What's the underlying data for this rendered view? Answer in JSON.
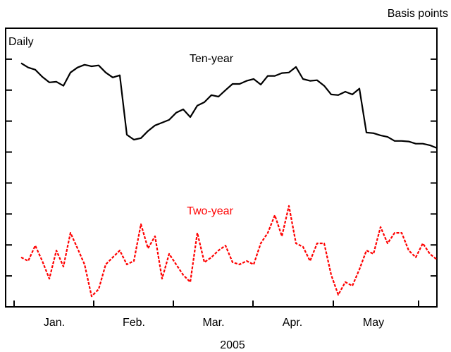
{
  "chart_data": {
    "type": "line",
    "y_unit_label": "Basis points",
    "annotation": "Daily",
    "x_labels": [
      "Jan.",
      "Feb.",
      "Mar.",
      "Apr.",
      "May"
    ],
    "xlabel": "2005",
    "ylim": [
      0,
      90
    ],
    "yticks": [
      10,
      20,
      30,
      40,
      50,
      60,
      70,
      80
    ],
    "series": [
      {
        "name": "Ten-year",
        "color": "#000000",
        "dashed": false,
        "values": [
          78.7,
          77.3,
          76.6,
          74.3,
          72.5,
          72.7,
          71.4,
          75.7,
          77.3,
          78.2,
          77.7,
          78.0,
          75.7,
          74.1,
          74.8,
          55.6,
          54.0,
          54.5,
          56.8,
          58.6,
          59.5,
          60.4,
          62.7,
          63.8,
          61.3,
          65.0,
          66.1,
          68.4,
          67.9,
          70.0,
          72.0,
          72.0,
          73.0,
          73.6,
          71.8,
          74.6,
          74.6,
          75.5,
          75.7,
          77.5,
          73.6,
          73.0,
          73.2,
          71.4,
          68.6,
          68.4,
          69.5,
          68.6,
          70.5,
          56.3,
          56.1,
          55.4,
          54.9,
          53.6,
          53.6,
          53.4,
          52.7,
          52.7,
          52.2,
          51.3
        ]
      },
      {
        "name": "Two-year",
        "color": "#ff0000",
        "dashed": true,
        "values": [
          16.0,
          14.8,
          19.8,
          14.8,
          9.1,
          18.2,
          13.0,
          23.9,
          18.9,
          13.7,
          3.4,
          5.7,
          13.7,
          16.0,
          18.2,
          13.7,
          14.8,
          26.7,
          18.9,
          22.8,
          9.1,
          17.1,
          13.7,
          10.3,
          8.0,
          23.9,
          14.4,
          16.0,
          18.2,
          19.8,
          14.4,
          13.7,
          14.8,
          13.7,
          20.5,
          23.9,
          29.6,
          22.8,
          32.6,
          20.5,
          19.4,
          14.8,
          20.5,
          20.5,
          10.3,
          3.9,
          8.0,
          6.8,
          12.1,
          18.2,
          17.1,
          25.8,
          20.5,
          23.9,
          23.9,
          18.2,
          16.0,
          20.5,
          17.1,
          15.3
        ]
      }
    ]
  }
}
